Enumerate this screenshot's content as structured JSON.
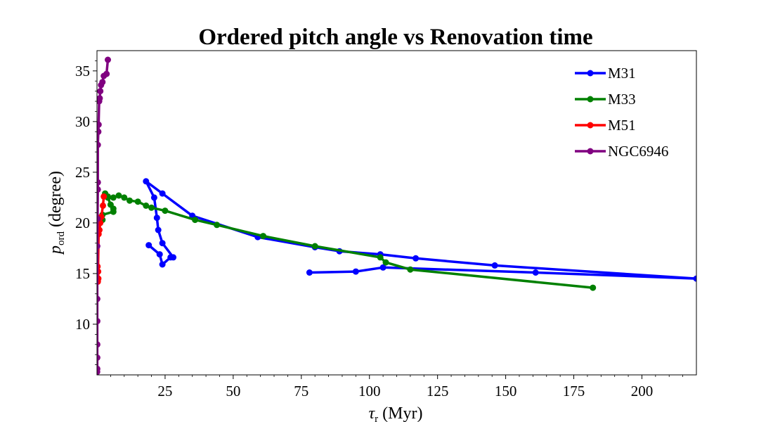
{
  "chart_data": {
    "type": "line",
    "title": "Ordered pitch angle vs Renovation time",
    "xlabel": {
      "symbol": "τ",
      "sub": "r",
      "unit": " (Myr)"
    },
    "ylabel": {
      "symbol": "p",
      "sub": "ord",
      "unit": " (degree)"
    },
    "xlim": [
      0,
      220
    ],
    "ylim": [
      5,
      37
    ],
    "xticks": [
      25,
      50,
      75,
      100,
      125,
      150,
      175,
      200
    ],
    "yticks": [
      10,
      15,
      20,
      25,
      30,
      35
    ],
    "legend_position": "top-right",
    "grid": false,
    "series": [
      {
        "name": "M31",
        "color": "#0000ff",
        "points": [
          [
            78,
            15.1
          ],
          [
            95,
            15.2
          ],
          [
            105,
            15.6
          ],
          [
            161,
            15.1
          ],
          [
            220,
            14.5
          ],
          [
            146,
            15.8
          ],
          [
            117,
            16.5
          ],
          [
            104,
            16.9
          ],
          [
            89,
            17.2
          ],
          [
            80,
            17.6
          ],
          [
            59,
            18.6
          ],
          [
            35,
            20.7
          ],
          [
            24,
            22.9
          ],
          [
            18,
            24.1
          ],
          [
            21,
            22.5
          ],
          [
            22,
            20.5
          ],
          [
            22.5,
            19.3
          ],
          [
            24,
            18.0
          ],
          [
            28,
            16.6
          ],
          [
            27,
            16.6
          ],
          [
            24,
            15.9
          ],
          [
            23,
            16.9
          ],
          [
            19,
            17.8
          ]
        ]
      },
      {
        "name": "M33",
        "color": "#008000",
        "points": [
          [
            182,
            13.6
          ],
          [
            115,
            15.4
          ],
          [
            106,
            16.1
          ],
          [
            104,
            16.6
          ],
          [
            80,
            17.7
          ],
          [
            61,
            18.7
          ],
          [
            44,
            19.8
          ],
          [
            36,
            20.3
          ],
          [
            25,
            21.2
          ],
          [
            20,
            21.5
          ],
          [
            18,
            21.7
          ],
          [
            15,
            22.1
          ],
          [
            12,
            22.2
          ],
          [
            10,
            22.5
          ],
          [
            8,
            22.7
          ],
          [
            6,
            22.5
          ],
          [
            4,
            22.6
          ],
          [
            3,
            22.9
          ],
          [
            4,
            22.5
          ],
          [
            5,
            21.8
          ],
          [
            6,
            21.4
          ],
          [
            6,
            21.1
          ],
          [
            2,
            20.8
          ],
          [
            2,
            20.3
          ],
          [
            1,
            20.1
          ]
        ]
      },
      {
        "name": "M51",
        "color": "#ff0000",
        "points": [
          [
            0.2,
            15.7
          ],
          [
            0.4,
            15.2
          ],
          [
            0.5,
            14.5
          ],
          [
            0.3,
            14.2
          ],
          [
            0.6,
            18.9
          ],
          [
            0.9,
            19.3
          ],
          [
            1.2,
            20.0
          ],
          [
            1.6,
            20.6
          ],
          [
            2.2,
            21.7
          ],
          [
            2.5,
            22.6
          ]
        ]
      },
      {
        "name": "NGC6946",
        "color": "#800080",
        "points": [
          [
            0.05,
            5.3
          ],
          [
            0.1,
            5.6
          ],
          [
            0.1,
            6.7
          ],
          [
            0.1,
            8.0
          ],
          [
            0.1,
            10.3
          ],
          [
            0.1,
            12.5
          ],
          [
            0.1,
            17.7
          ],
          [
            0.2,
            20.4
          ],
          [
            0.3,
            23.3
          ],
          [
            0.3,
            24.0
          ],
          [
            0.3,
            27.7
          ],
          [
            0.5,
            29.0
          ],
          [
            0.6,
            29.7
          ],
          [
            0.8,
            32.0
          ],
          [
            1,
            32.3
          ],
          [
            1.2,
            33.0
          ],
          [
            1.5,
            33.6
          ],
          [
            2,
            33.9
          ],
          [
            2.5,
            34.5
          ],
          [
            3.5,
            34.7
          ],
          [
            4,
            36.1
          ]
        ]
      }
    ]
  }
}
